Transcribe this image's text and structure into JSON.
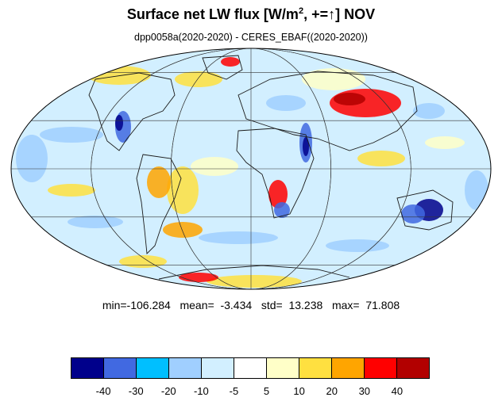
{
  "title": {
    "main": "Surface net LW flux [W/m",
    "sup": "2",
    "tail": ", +=↑]  NOV"
  },
  "subtitle": "dpp0058a(2020-2020) - CERES_EBAF((2020-2020))",
  "stats": {
    "text": "min=-106.284   mean=  -3.434   std=  13.238   max=  71.808"
  },
  "colorbar": {
    "colors": [
      "#00008b",
      "#4169e1",
      "#00bfff",
      "#a0cfff",
      "#d2efff",
      "#ffffff",
      "#ffffc8",
      "#ffe040",
      "#ffa500",
      "#ff0000",
      "#b20000"
    ],
    "labels": [
      "-40",
      "-30",
      "-20",
      "-10",
      "-5",
      "5",
      "10",
      "20",
      "30",
      "40"
    ]
  },
  "map": {
    "projection": "Mollweide",
    "grid": true,
    "background_color": "#d2efff"
  }
}
